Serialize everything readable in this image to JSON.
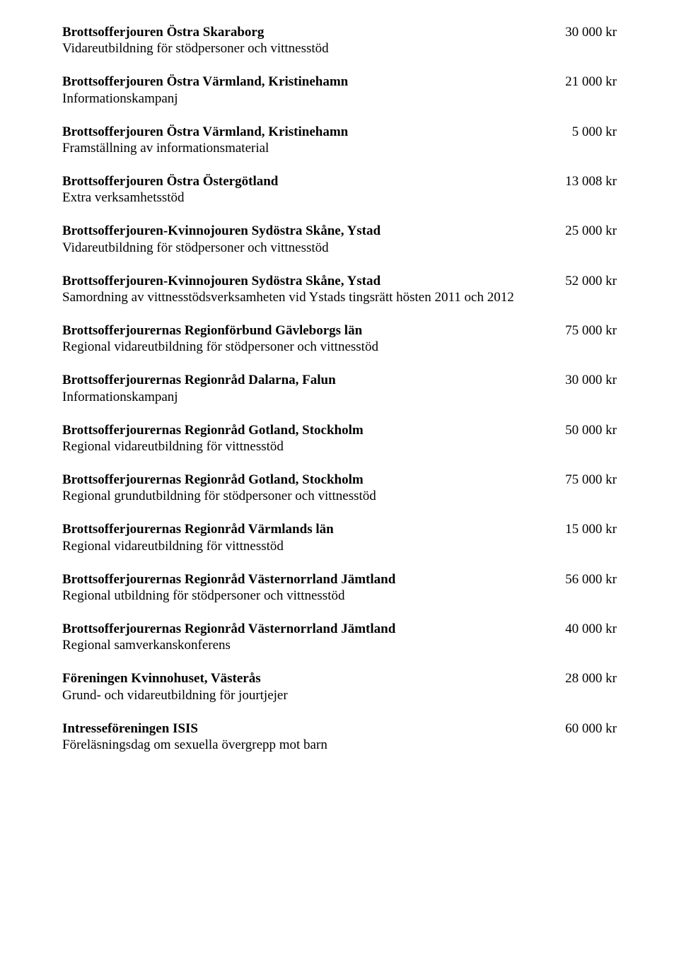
{
  "entries": [
    {
      "title": "Brottsofferjouren Östra Skaraborg",
      "amount": "30 000 kr",
      "desc": "Vidareutbildning för stödpersoner och vittnesstöd"
    },
    {
      "title": "Brottsofferjouren Östra Värmland, Kristinehamn",
      "amount": "21 000 kr",
      "desc": "Informationskampanj"
    },
    {
      "title": "Brottsofferjouren Östra Värmland, Kristinehamn",
      "amount": "5 000 kr",
      "desc": "Framställning av informationsmaterial"
    },
    {
      "title": "Brottsofferjouren Östra Östergötland",
      "amount": "13 008 kr",
      "desc": "Extra verksamhetsstöd"
    },
    {
      "title": "Brottsofferjouren-Kvinnojouren Sydöstra Skåne, Ystad",
      "amount": "25 000 kr",
      "desc": "Vidareutbildning för stödpersoner och vittnesstöd"
    },
    {
      "title": "Brottsofferjouren-Kvinnojouren Sydöstra Skåne, Ystad",
      "amount": "52 000 kr",
      "desc": "Samordning av vittnesstödsverksamheten vid Ystads tingsrätt hösten 2011 och 2012"
    },
    {
      "title": "Brottsofferjourernas Regionförbund Gävleborgs län",
      "amount": "75 000 kr",
      "desc": "Regional vidareutbildning för stödpersoner och vittnesstöd"
    },
    {
      "title": "Brottsofferjourernas Regionråd Dalarna, Falun",
      "amount": "30 000 kr",
      "desc": "Informationskampanj"
    },
    {
      "title": "Brottsofferjourernas Regionråd Gotland, Stockholm",
      "amount": "50 000 kr",
      "desc": "Regional vidareutbildning för vittnesstöd"
    },
    {
      "title": "Brottsofferjourernas Regionråd Gotland, Stockholm",
      "amount": "75 000 kr",
      "desc": "Regional grundutbildning för stödpersoner och vittnesstöd"
    },
    {
      "title": "Brottsofferjourernas Regionråd Värmlands län",
      "amount": "15 000 kr",
      "desc": "Regional vidareutbildning för vittnesstöd"
    },
    {
      "title": "Brottsofferjourernas Regionråd Västernorrland Jämtland",
      "amount": "56 000 kr",
      "desc": "Regional utbildning för stödpersoner och vittnesstöd"
    },
    {
      "title": "Brottsofferjourernas Regionråd Västernorrland Jämtland",
      "amount": "40 000 kr",
      "desc": "Regional samverkanskonferens"
    },
    {
      "title": "Föreningen Kvinnohuset, Västerås",
      "amount": "28 000 kr",
      "desc": "Grund- och vidareutbildning för jourtjejer"
    },
    {
      "title": "Intresseföreningen ISIS",
      "amount": "60 000 kr",
      "desc": "Föreläsningsdag om sexuella övergrepp mot barn"
    }
  ]
}
